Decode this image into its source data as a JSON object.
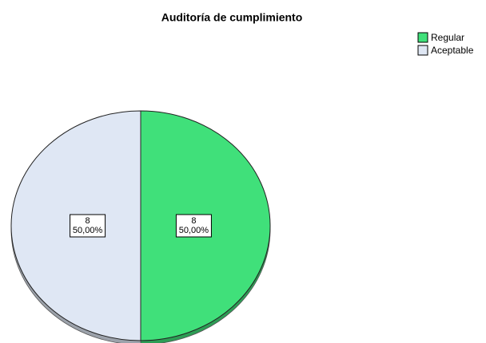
{
  "chart_data": {
    "type": "pie",
    "title": "Auditoría de cumplimiento",
    "categories": [
      "Regular",
      "Aceptable"
    ],
    "values": [
      8,
      8
    ],
    "percentages": [
      50,
      50
    ],
    "percentage_labels": [
      "50,00%",
      "50,00%"
    ],
    "colors": [
      "#40e07a",
      "#dfe7f4"
    ],
    "legend": "top-right"
  }
}
